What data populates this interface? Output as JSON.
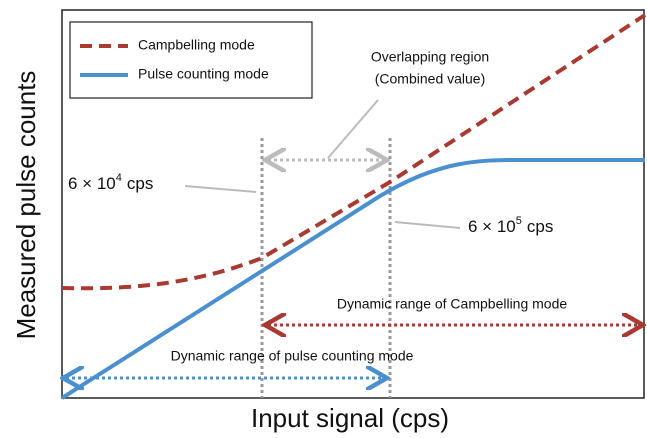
{
  "axes": {
    "x_label": "Input signal (cps)",
    "y_label": "Measured pulse counts"
  },
  "legend": [
    {
      "label": "Campbelling mode",
      "color": "#a83a32"
    },
    {
      "label": "Pulse counting mode",
      "color": "#4a90d0"
    }
  ],
  "annotations": {
    "overlap": [
      "Overlapping region",
      "(Combined value)"
    ],
    "low_threshold": {
      "base": "6 × 10",
      "exponent": "4",
      "unit": "cps"
    },
    "high_threshold": {
      "base": "6 × 10",
      "exponent": "5",
      "unit": "cps"
    },
    "campbelling_range": "Dynamic range of Campbelling mode",
    "pulse_range": "Dynamic range of pulse counting mode"
  }
}
